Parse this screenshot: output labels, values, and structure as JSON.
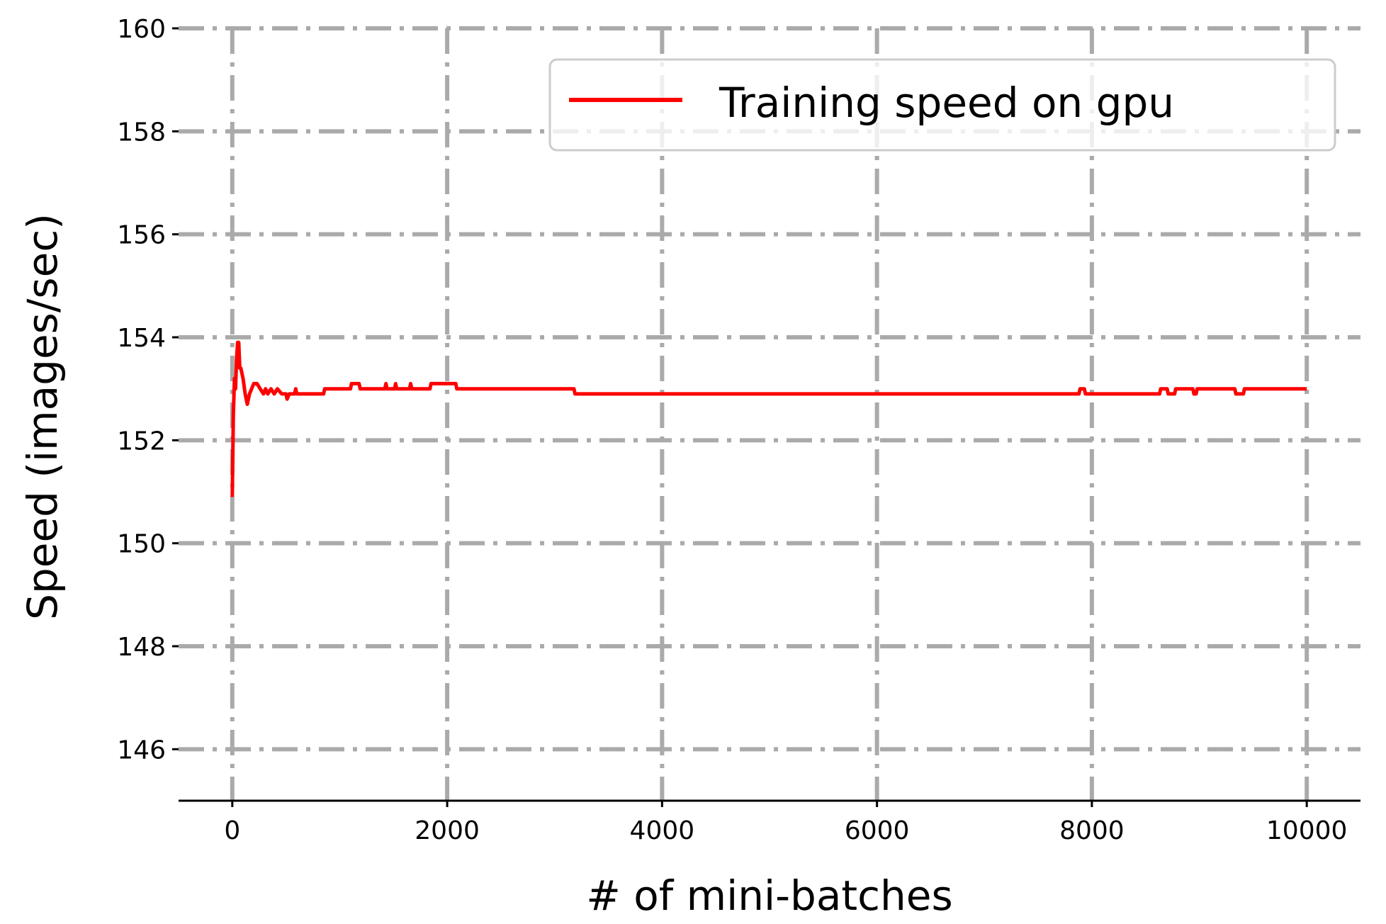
{
  "chart_data": {
    "type": "line",
    "title": "",
    "xlabel": "# of mini-batches",
    "ylabel": "Speed (images/sec)",
    "xlim": [
      -500,
      10500
    ],
    "ylim": [
      145,
      160
    ],
    "x_ticks": [
      0,
      2000,
      4000,
      6000,
      8000,
      10000
    ],
    "y_ticks": [
      146,
      148,
      150,
      152,
      154,
      156,
      158,
      160
    ],
    "x_tick_labels": [
      "0",
      "2000",
      "4000",
      "6000",
      "8000",
      "10000"
    ],
    "y_tick_labels": [
      "146",
      "148",
      "150",
      "152",
      "154",
      "156",
      "158",
      "160"
    ],
    "grid": true,
    "grid_style": "dash-dot",
    "legend_position": "top-right",
    "series": [
      {
        "name": "Training speed on gpu",
        "color": "#ff0000",
        "points": [
          [
            0,
            150.9
          ],
          [
            10,
            152.5
          ],
          [
            20,
            153.2
          ],
          [
            30,
            153.0
          ],
          [
            40,
            153.6
          ],
          [
            50,
            153.9
          ],
          [
            60,
            153.9
          ],
          [
            70,
            153.4
          ],
          [
            80,
            153.4
          ],
          [
            100,
            153.2
          ],
          [
            120,
            152.9
          ],
          [
            140,
            152.7
          ],
          [
            160,
            152.9
          ],
          [
            180,
            153.0
          ],
          [
            200,
            153.1
          ],
          [
            230,
            153.1
          ],
          [
            260,
            153.0
          ],
          [
            290,
            152.9
          ],
          [
            310,
            153.0
          ],
          [
            330,
            152.9
          ],
          [
            360,
            153.0
          ],
          [
            390,
            152.9
          ],
          [
            420,
            153.0
          ],
          [
            460,
            152.9
          ],
          [
            500,
            152.9
          ],
          [
            510,
            152.8
          ],
          [
            530,
            152.9
          ],
          [
            580,
            152.9
          ],
          [
            590,
            153.0
          ],
          [
            600,
            152.9
          ],
          [
            850,
            152.9
          ],
          [
            860,
            153.0
          ],
          [
            1100,
            153.0
          ],
          [
            1110,
            153.1
          ],
          [
            1180,
            153.1
          ],
          [
            1190,
            153.0
          ],
          [
            1420,
            153.0
          ],
          [
            1430,
            153.1
          ],
          [
            1440,
            153.0
          ],
          [
            1510,
            153.0
          ],
          [
            1520,
            153.1
          ],
          [
            1530,
            153.0
          ],
          [
            1650,
            153.0
          ],
          [
            1660,
            153.1
          ],
          [
            1670,
            153.0
          ],
          [
            1840,
            153.0
          ],
          [
            1850,
            153.1
          ],
          [
            2080,
            153.1
          ],
          [
            2090,
            153.0
          ],
          [
            3180,
            153.0
          ],
          [
            3190,
            152.9
          ],
          [
            7880,
            152.9
          ],
          [
            7890,
            153.0
          ],
          [
            7930,
            153.0
          ],
          [
            7940,
            152.9
          ],
          [
            8630,
            152.9
          ],
          [
            8640,
            153.0
          ],
          [
            8700,
            153.0
          ],
          [
            8710,
            152.9
          ],
          [
            8770,
            152.9
          ],
          [
            8780,
            153.0
          ],
          [
            8940,
            153.0
          ],
          [
            8950,
            152.9
          ],
          [
            8970,
            152.9
          ],
          [
            8980,
            153.0
          ],
          [
            9330,
            153.0
          ],
          [
            9340,
            152.9
          ],
          [
            9410,
            152.9
          ],
          [
            9420,
            153.0
          ],
          [
            10000,
            153.0
          ]
        ]
      }
    ]
  }
}
